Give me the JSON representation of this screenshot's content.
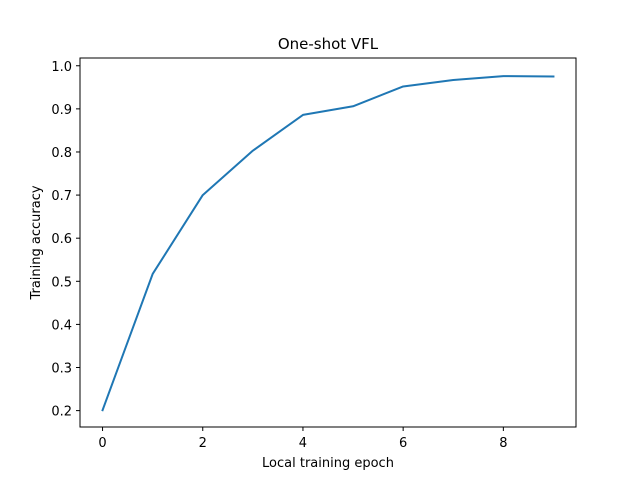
{
  "chart_data": {
    "type": "line",
    "title": "One-shot VFL",
    "xlabel": "Local training epoch",
    "ylabel": "Training accuracy",
    "xlim": [
      -0.45,
      9.45
    ],
    "ylim": [
      0.162,
      1.018
    ],
    "xticks": [
      0,
      2,
      4,
      6,
      8
    ],
    "yticks": [
      0.2,
      0.3,
      0.4,
      0.5,
      0.6,
      0.7,
      0.8,
      0.9,
      1.0
    ],
    "ytick_labels": [
      "0.2",
      "0.3",
      "0.4",
      "0.5",
      "0.6",
      "0.7",
      "0.8",
      "0.9",
      "1.0"
    ],
    "grid": false,
    "series": [
      {
        "color": "#1f77b4",
        "x": [
          0,
          1,
          2,
          3,
          4,
          5,
          6,
          7,
          8,
          9
        ],
        "y": [
          0.201,
          0.517,
          0.7,
          0.803,
          0.886,
          0.906,
          0.952,
          0.967,
          0.976,
          0.975
        ]
      }
    ]
  }
}
